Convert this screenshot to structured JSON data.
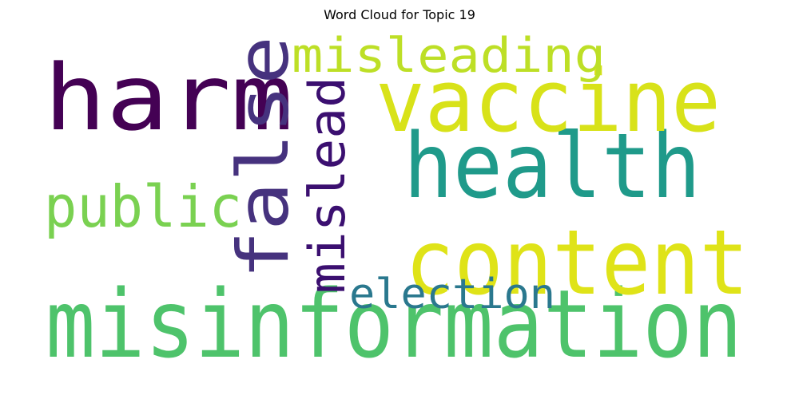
{
  "figure": {
    "title": "Word Cloud for Topic 19"
  },
  "words": [
    {
      "key": "misinformation",
      "text": "misinformation",
      "color": "#4ec36b"
    },
    {
      "key": "content",
      "text": "content",
      "color": "#dfe318"
    },
    {
      "key": "health",
      "text": "health",
      "color": "#1f9a8a"
    },
    {
      "key": "vaccine",
      "text": "vaccine",
      "color": "#d8e219"
    },
    {
      "key": "harm",
      "text": "harm",
      "color": "#440154"
    },
    {
      "key": "false",
      "text": "false",
      "color": "#46327e"
    },
    {
      "key": "misleading",
      "text": "misleading",
      "color": "#bddf26"
    },
    {
      "key": "public",
      "text": "public",
      "color": "#7ad151"
    },
    {
      "key": "mislead",
      "text": "mislead",
      "color": "#3b0f70"
    },
    {
      "key": "election",
      "text": "election",
      "color": "#2a788e"
    }
  ]
}
